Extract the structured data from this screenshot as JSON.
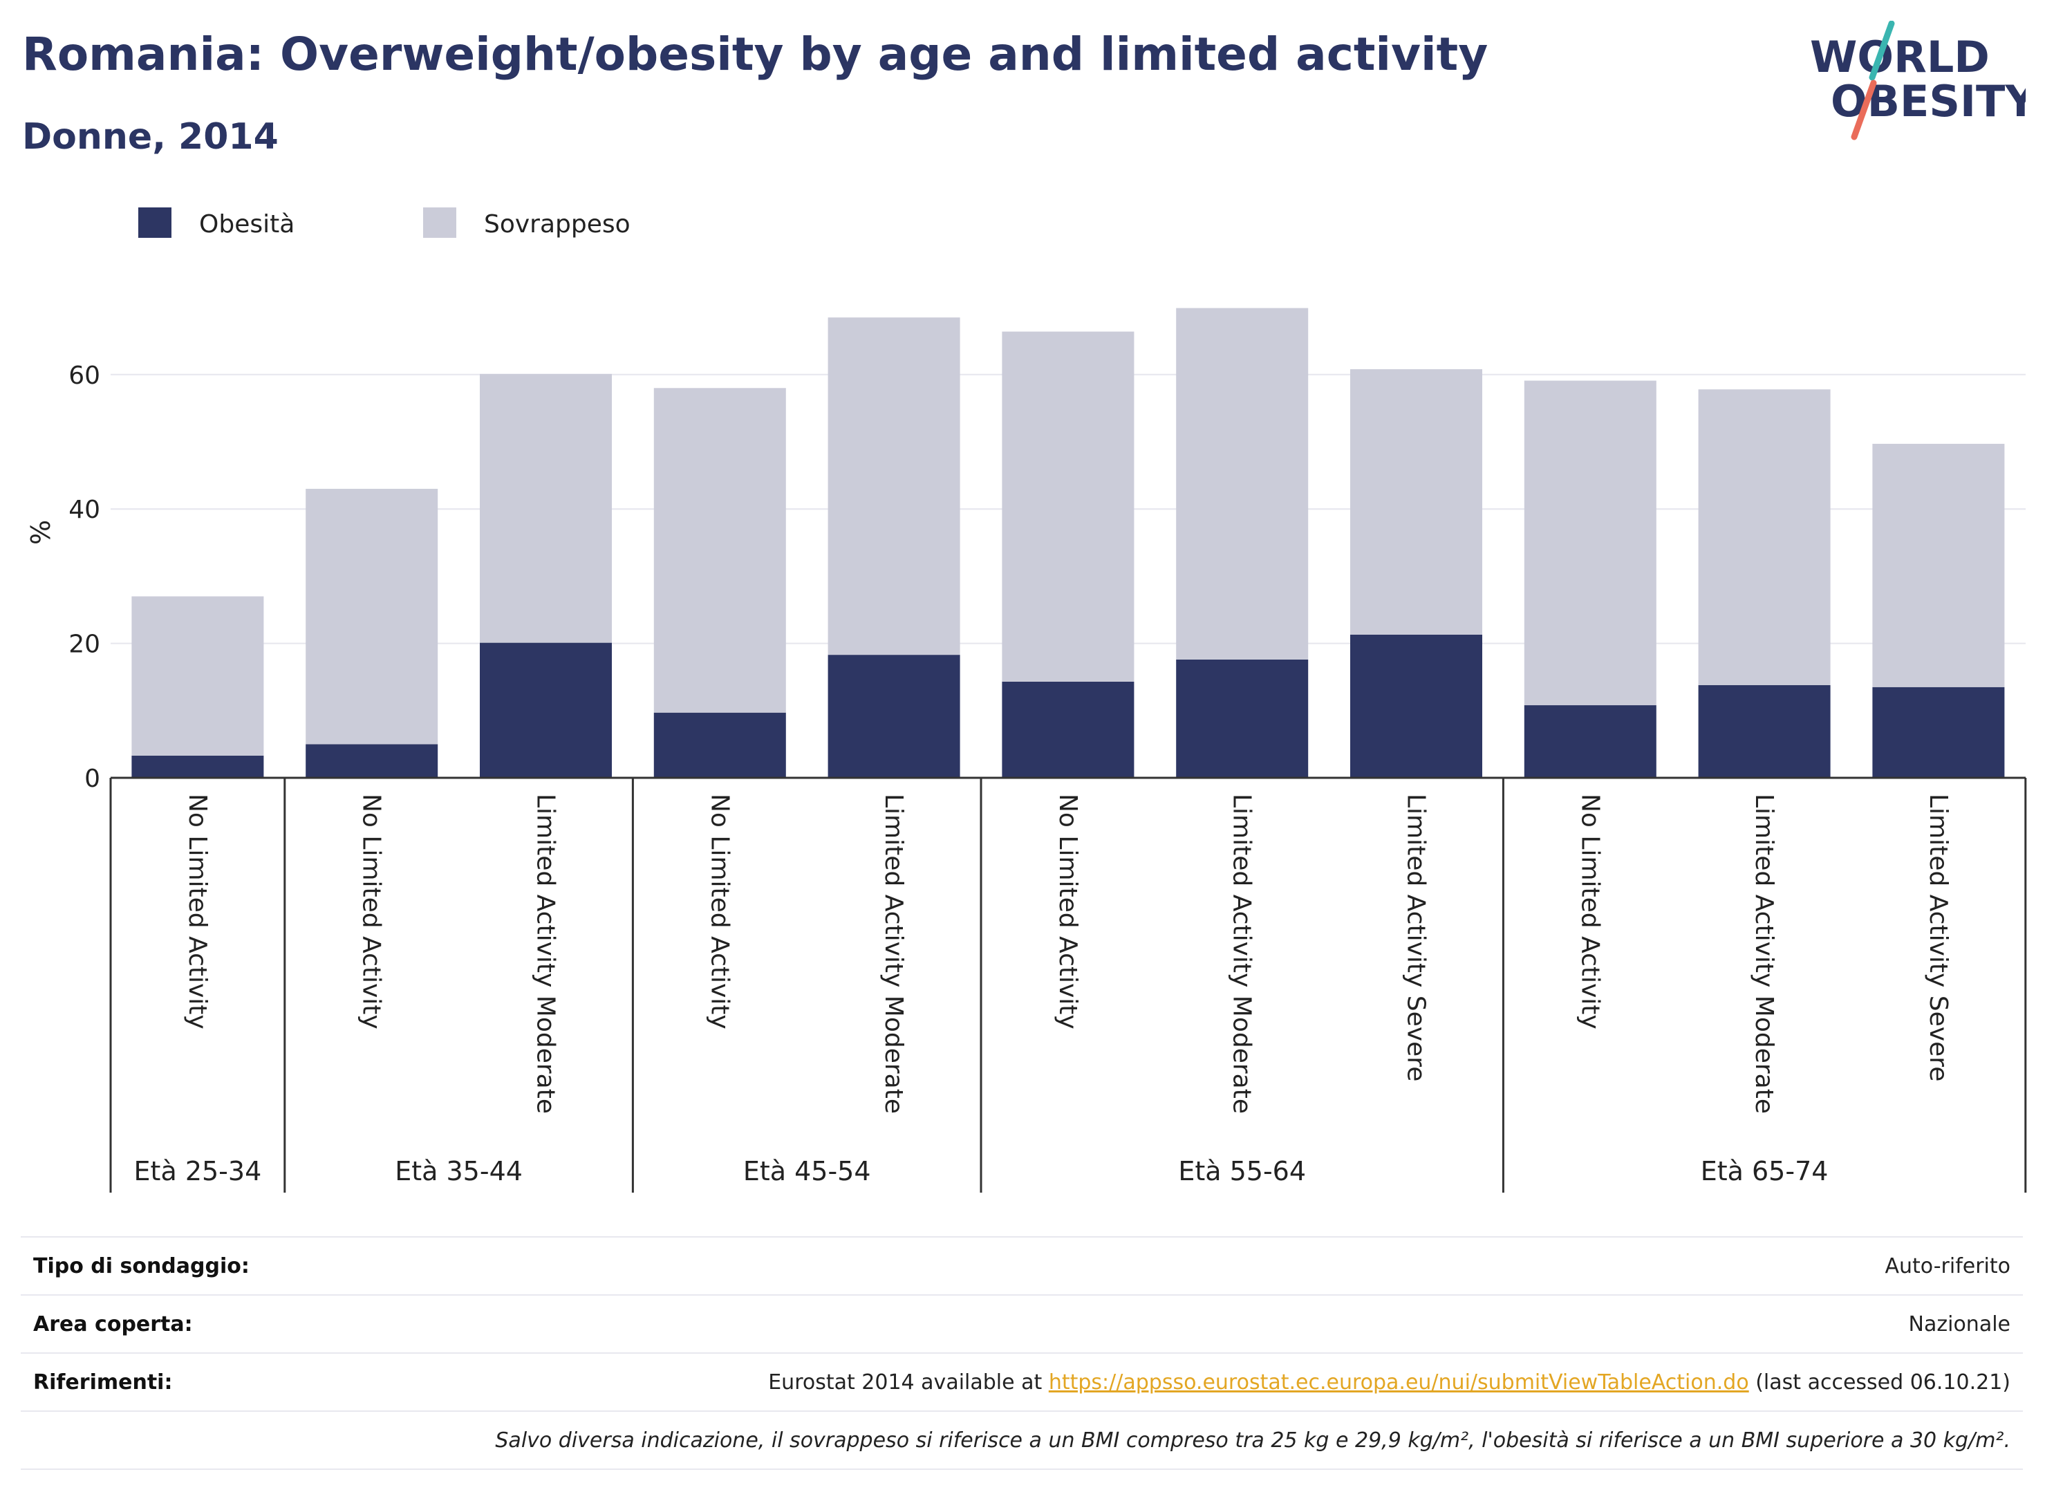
{
  "title": "Romania: Overweight/obesity by age and limited activity",
  "subtitle": "Donne, 2014",
  "logo": {
    "line1": "WORLD",
    "line2": "OBESITY"
  },
  "colors": {
    "title": "#2b3563",
    "obesity": "#2d3663",
    "overweight": "#cbccd9",
    "grid": "#e6e6ee",
    "link": "#e3a623"
  },
  "chart_data": {
    "type": "bar",
    "stacked": true,
    "ylabel": "%",
    "ylim": [
      0,
      75
    ],
    "yticks": [
      0,
      20,
      40,
      60
    ],
    "grid": true,
    "legend_position": "top-left",
    "categories": [
      "No Limited Activity",
      "No Limited Activity",
      "Limited Activity Moderate",
      "No Limited Activity",
      "Limited Activity Moderate",
      "No Limited Activity",
      "Limited Activity Moderate",
      "Limited Activity Severe",
      "No Limited Activity",
      "Limited Activity Moderate",
      "Limited Activity Severe"
    ],
    "groups": [
      {
        "label": "Età 25-34",
        "count": 1
      },
      {
        "label": "Età 35-44",
        "count": 2
      },
      {
        "label": "Età 45-54",
        "count": 2
      },
      {
        "label": "Età 55-64",
        "count": 3
      },
      {
        "label": "Età 65-74",
        "count": 3
      }
    ],
    "series": [
      {
        "name": "Obesità",
        "color": "#2d3663",
        "values": [
          3.3,
          5.0,
          20.1,
          9.7,
          18.3,
          14.3,
          17.6,
          21.3,
          10.8,
          13.8,
          13.5
        ]
      },
      {
        "name": "Sovrappeso",
        "color": "#cbccd9",
        "values": [
          23.7,
          38.0,
          40.0,
          48.3,
          50.2,
          52.1,
          52.3,
          39.5,
          48.3,
          44.0,
          36.2
        ]
      }
    ]
  },
  "info": {
    "rows": [
      {
        "label": "Tipo di sondaggio:",
        "value": "Auto-riferito"
      },
      {
        "label": "Area coperta:",
        "value": "Nazionale"
      }
    ],
    "references": {
      "label": "Riferimenti:",
      "prefix": "Eurostat 2014 available at ",
      "link": "https://appsso.eurostat.ec.europa.eu/nui/submitViewTableAction.do",
      "suffix": " (last accessed 06.10.21)"
    },
    "note": "Salvo diversa indicazione, il sovrappeso si riferisce a un BMI compreso tra 25 kg e 29,9 kg/m², l'obesità si riferisce a un BMI superiore a 30 kg/m²."
  }
}
